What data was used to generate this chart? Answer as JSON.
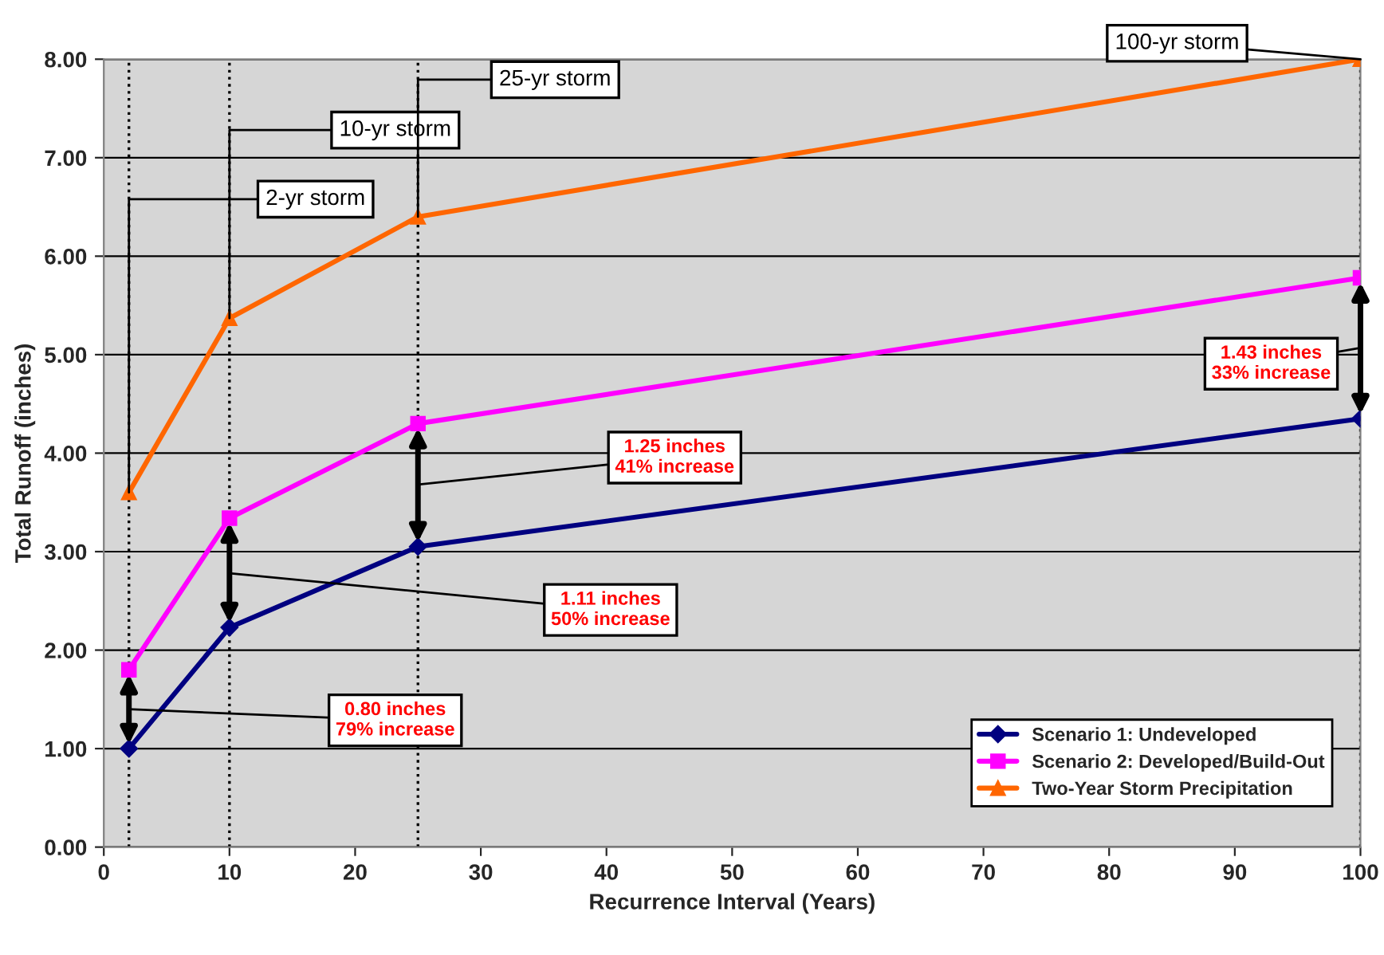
{
  "chart_data": {
    "type": "line",
    "xlabel": "Recurrence Interval (Years)",
    "ylabel": "Total Runoff (inches)",
    "x": [
      2,
      10,
      25,
      100
    ],
    "series": [
      {
        "name": "Scenario 1: Undeveloped",
        "color": "#000080",
        "marker": "diamond",
        "values": [
          1.0,
          2.23,
          3.05,
          4.35
        ]
      },
      {
        "name": "Scenario 2: Developed/Build-Out",
        "color": "#ff00ff",
        "marker": "square",
        "values": [
          1.8,
          3.34,
          4.3,
          5.78
        ]
      },
      {
        "name": "Two-Year Storm Precipitation",
        "color": "#ff6600",
        "marker": "triangle",
        "values": [
          3.6,
          5.37,
          6.4,
          8.0
        ]
      }
    ],
    "xlim": [
      0,
      100
    ],
    "xticks": [
      0,
      10,
      20,
      30,
      40,
      50,
      60,
      70,
      80,
      90,
      100
    ],
    "ylim": [
      0,
      8
    ],
    "yticks": [
      {
        "value": 0,
        "label": "0.00"
      },
      {
        "value": 1,
        "label": "1.00"
      },
      {
        "value": 2,
        "label": "2.00"
      },
      {
        "value": 3,
        "label": "3.00"
      },
      {
        "value": 4,
        "label": "4.00"
      },
      {
        "value": 5,
        "label": "5.00"
      },
      {
        "value": 6,
        "label": "6.00"
      },
      {
        "value": 7,
        "label": "7.00"
      },
      {
        "value": 8,
        "label": "8.00"
      }
    ],
    "ref_lines": [
      {
        "axis": "x",
        "value": 2,
        "line_style": "dotted",
        "color": "#000000"
      },
      {
        "axis": "x",
        "value": 10,
        "line_style": "dotted",
        "color": "#000000"
      },
      {
        "axis": "x",
        "value": 25,
        "line_style": "dotted",
        "color": "#000000"
      },
      {
        "axis": "x",
        "value": 100,
        "line_style": "dotted",
        "color": "#000000"
      }
    ],
    "annotations": [
      {
        "text": "2-yr storm",
        "x": 2,
        "y": 3.6
      },
      {
        "text": "10-yr storm",
        "x": 10,
        "y": 5.37
      },
      {
        "text": "25-yr storm",
        "x": 25,
        "y": 6.4
      },
      {
        "text": "100-yr storm",
        "x": 100,
        "y": 8.0
      },
      {
        "text": "0.80 inches\n79% increase",
        "x": 2,
        "y": 1.4
      },
      {
        "text": "1.11 inches\n50% increase",
        "x": 10,
        "y": 2.78
      },
      {
        "text": "1.25 inches\n41% increase",
        "x": 25,
        "y": 3.68
      },
      {
        "text": "1.43 inches\n33% increase",
        "x": 100,
        "y": 5.07
      }
    ],
    "grid": "y",
    "legend": "bottom right",
    "line_style": "solid"
  }
}
